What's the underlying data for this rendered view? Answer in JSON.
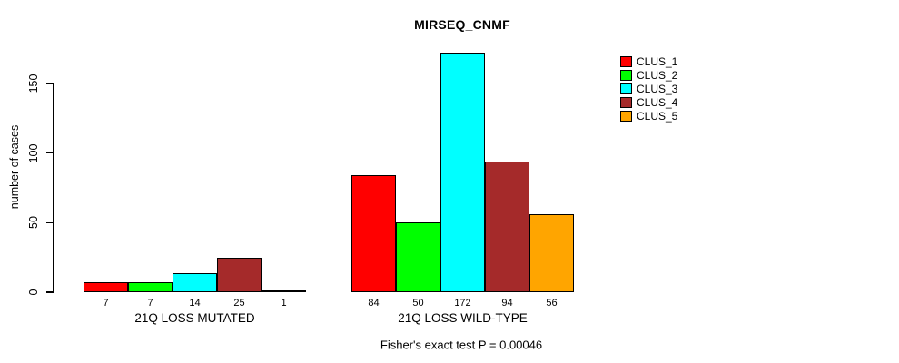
{
  "chart_data": {
    "type": "bar",
    "title": "MIRSEQ_CNMF",
    "ylabel": "number of cases",
    "xlabel": "",
    "ylim": [
      0,
      150
    ],
    "y_ticks": [
      0,
      50,
      100,
      150
    ],
    "grid": false,
    "legend_position": "right",
    "categories": [
      "21Q LOSS MUTATED",
      "21Q LOSS WILD-TYPE"
    ],
    "series": [
      {
        "name": "CLUS_1",
        "color": "#FF0000",
        "values": [
          7,
          84
        ]
      },
      {
        "name": "CLUS_2",
        "color": "#00FF00",
        "values": [
          7,
          50
        ]
      },
      {
        "name": "CLUS_3",
        "color": "#00FFFF",
        "values": [
          14,
          172
        ]
      },
      {
        "name": "CLUS_4",
        "color": "#A52A2A",
        "values": [
          25,
          94
        ]
      },
      {
        "name": "CLUS_5",
        "color": "#FFA500",
        "values": [
          1,
          56
        ]
      }
    ],
    "bar_border_color": "#000000",
    "footnote": "Fisher's exact test P = 0.00046"
  }
}
